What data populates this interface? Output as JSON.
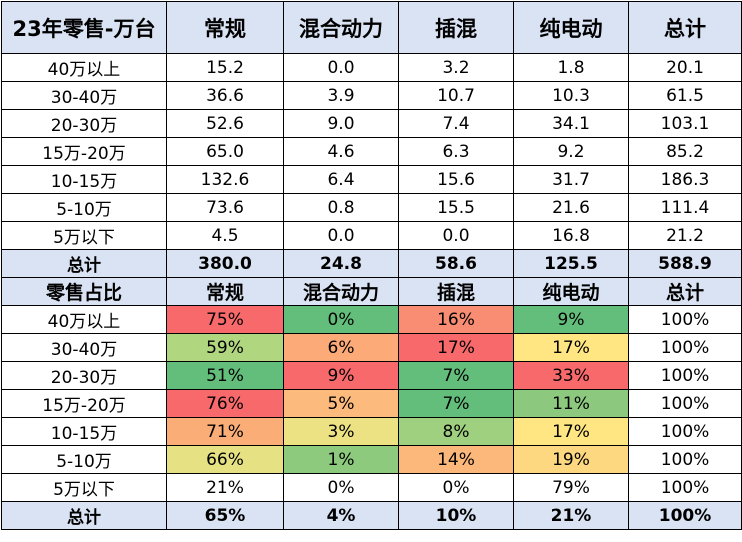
{
  "colors": {
    "header_bg": "#dae3f3",
    "scale_low": "#63be7b",
    "scale_mid": "#ffeb84",
    "scale_high": "#f8696b"
  },
  "table1": {
    "header": [
      "23年零售-万台",
      "常规",
      "混合动力",
      "插混",
      "纯电动",
      "总计"
    ],
    "rows": [
      [
        "40万以上",
        "15.2",
        "0.0",
        "3.2",
        "1.8",
        "20.1"
      ],
      [
        "30-40万",
        "36.6",
        "3.9",
        "10.7",
        "10.3",
        "61.5"
      ],
      [
        "20-30万",
        "52.6",
        "9.0",
        "7.4",
        "34.1",
        "103.1"
      ],
      [
        "15万-20万",
        "65.0",
        "4.6",
        "6.3",
        "9.2",
        "85.2"
      ],
      [
        "10-15万",
        "132.6",
        "6.4",
        "15.6",
        "31.7",
        "186.3"
      ],
      [
        "5-10万",
        "73.6",
        "0.8",
        "15.5",
        "21.6",
        "111.4"
      ],
      [
        "5万以下",
        "4.5",
        "0.0",
        "0.0",
        "16.8",
        "21.2"
      ]
    ],
    "total": [
      "总计",
      "380.0",
      "24.8",
      "58.6",
      "125.5",
      "588.9"
    ]
  },
  "table2": {
    "header": [
      "零售占比",
      "常规",
      "混合动力",
      "插混",
      "纯电动",
      "总计"
    ],
    "rows": [
      {
        "cells": [
          "40万以上",
          "75%",
          "0%",
          "16%",
          "9%",
          "100%"
        ],
        "fills": [
          null,
          "#f8696b",
          "#63be7b",
          "#f98d73",
          "#63be7b",
          null
        ]
      },
      {
        "cells": [
          "30-40万",
          "59%",
          "6%",
          "17%",
          "17%",
          "100%"
        ],
        "fills": [
          null,
          "#b1d680",
          "#fcaa78",
          "#f8696b",
          "#ffe683",
          null
        ]
      },
      {
        "cells": [
          "20-30万",
          "51%",
          "9%",
          "7%",
          "33%",
          "100%"
        ],
        "fills": [
          null,
          "#63be7b",
          "#f8696b",
          "#63be7b",
          "#f8696b",
          null
        ]
      },
      {
        "cells": [
          "15万-20万",
          "76%",
          "5%",
          "7%",
          "11%",
          "100%"
        ],
        "fills": [
          null,
          "#f8696b",
          "#fcba7d",
          "#63be7b",
          "#8cc97e",
          null
        ]
      },
      {
        "cells": [
          "10-15万",
          "71%",
          "3%",
          "8%",
          "17%",
          "100%"
        ],
        "fills": [
          null,
          "#fbad78",
          "#ede283",
          "#9fd07f",
          "#ffe683",
          null
        ]
      },
      {
        "cells": [
          "5-10万",
          "66%",
          "1%",
          "14%",
          "19%",
          "100%"
        ],
        "fills": [
          null,
          "#e6e283",
          "#8dca7e",
          "#fcb87a",
          "#fed880",
          null
        ]
      },
      {
        "cells": [
          "5万以下",
          "21%",
          "0%",
          "0%",
          "79%",
          "100%"
        ],
        "fills": [
          null,
          null,
          null,
          null,
          null,
          null
        ]
      }
    ],
    "total": [
      "总计",
      "65%",
      "4%",
      "10%",
      "21%",
      "100%"
    ]
  }
}
